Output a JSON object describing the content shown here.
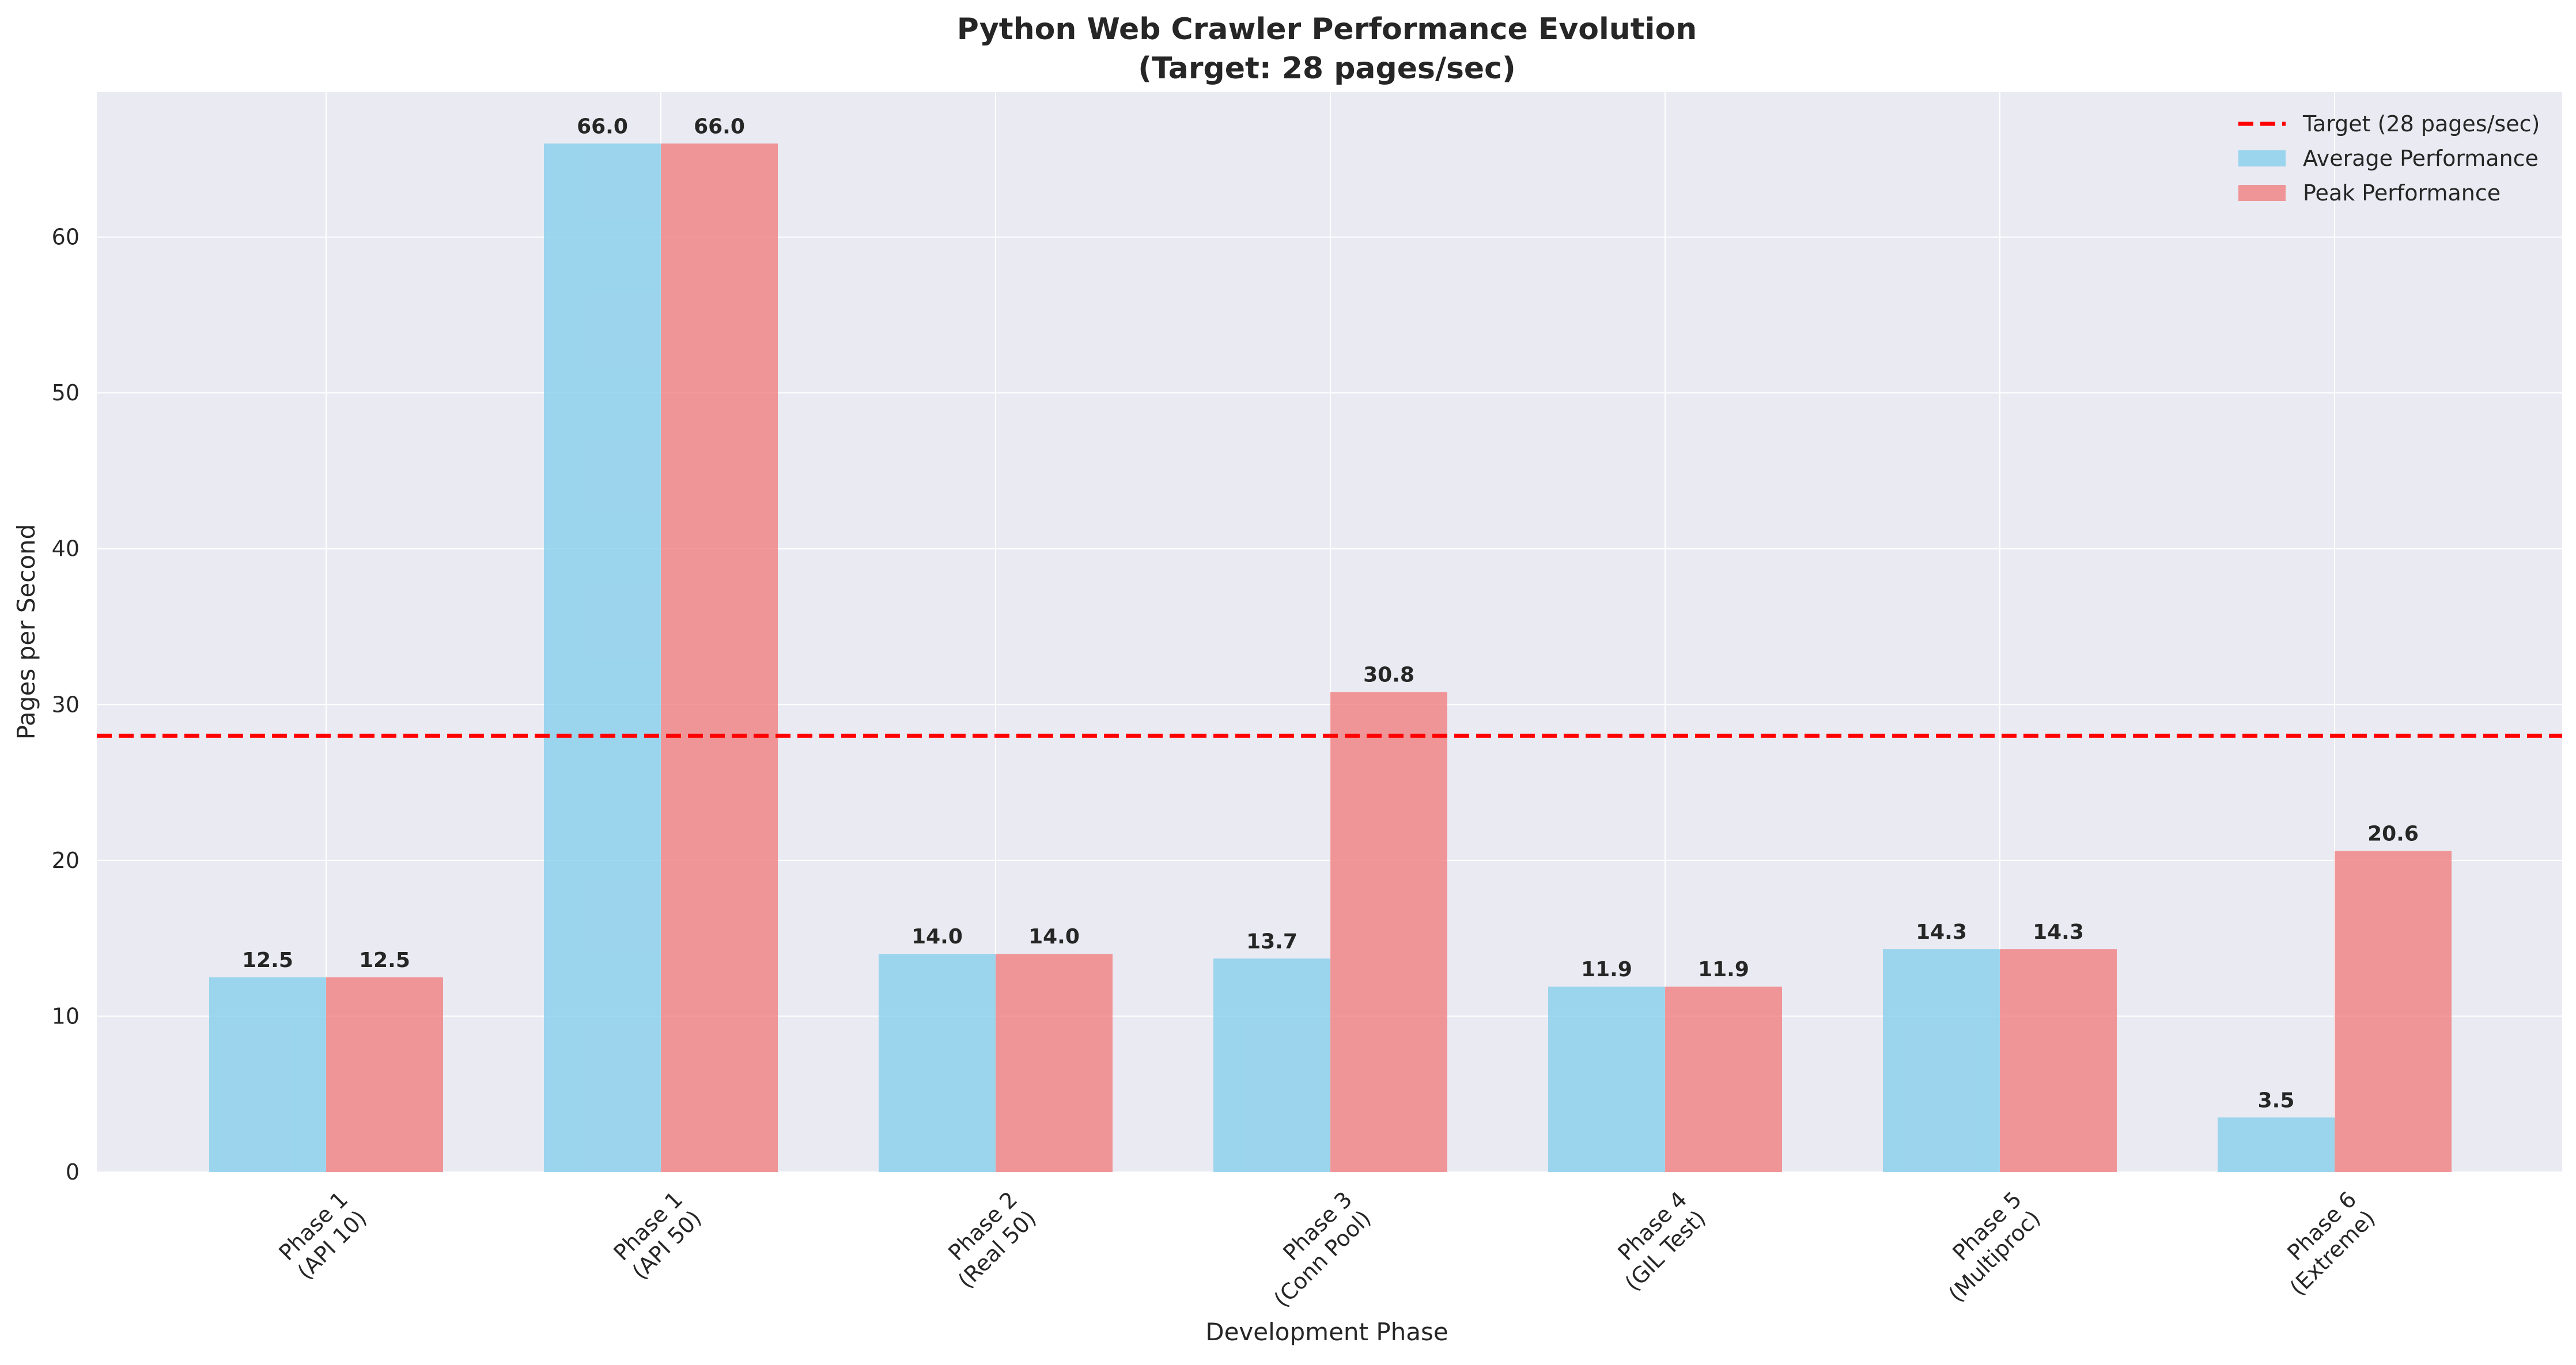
{
  "chart_data": {
    "type": "bar",
    "title": "Python Web Crawler Performance Evolution",
    "subtitle": "(Target: 28 pages/sec)",
    "xlabel": "Development Phase",
    "ylabel": "Pages per Second",
    "categories": [
      [
        "Phase 1",
        "(API 10)"
      ],
      [
        "Phase 1",
        "(API 50)"
      ],
      [
        "Phase 2",
        "(Real 50)"
      ],
      [
        "Phase 3",
        "(Conn Pool)"
      ],
      [
        "Phase 4",
        "(GIL Test)"
      ],
      [
        "Phase 5",
        "(Multiproc)"
      ],
      [
        "Phase 6",
        "(Extreme)"
      ]
    ],
    "series": [
      {
        "name": "Average Performance",
        "color": "#87CEEB",
        "values": [
          12.5,
          66.0,
          14.0,
          13.7,
          11.9,
          14.3,
          3.5
        ],
        "labels": [
          "12.5",
          "66.0",
          "14.0",
          "13.7",
          "11.9",
          "14.3",
          "3.5"
        ]
      },
      {
        "name": "Peak Performance",
        "color": "#F08080",
        "values": [
          12.5,
          66.0,
          14.0,
          30.8,
          11.9,
          14.3,
          20.6
        ],
        "labels": [
          "12.5",
          "66.0",
          "14.0",
          "30.8",
          "11.9",
          "14.3",
          "20.6"
        ]
      }
    ],
    "reference_line": {
      "name": "Target (28 pages/sec)",
      "value": 28,
      "color": "#FF0000",
      "style": "dashed"
    },
    "ylim": [
      0,
      69.3
    ],
    "yticks": [
      0,
      10,
      20,
      30,
      40,
      50,
      60
    ],
    "grid": true,
    "legend_position": "top-right",
    "colors": {
      "plot_background": "#EAEAF2",
      "grid": "#FFFFFF",
      "text": "#262626"
    }
  }
}
